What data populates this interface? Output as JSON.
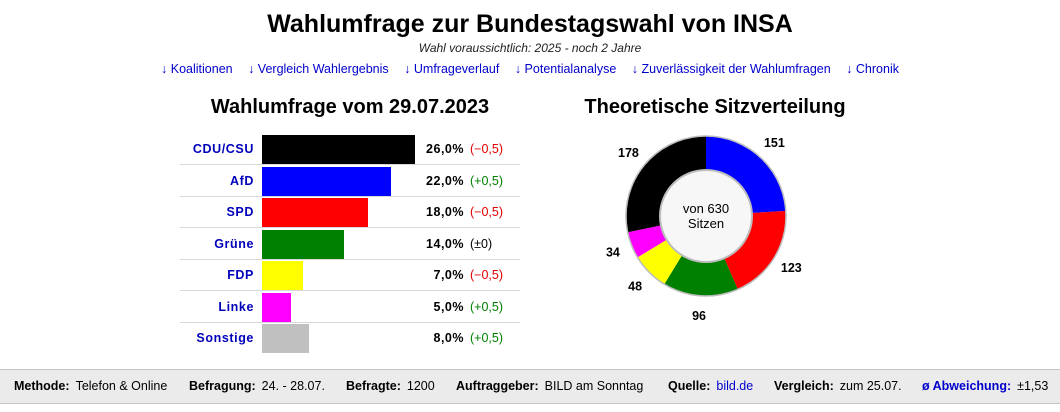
{
  "page": {
    "title": "Wahlumfrage zur Bundestagswahl von INSA",
    "subtitle": "Wahl voraussichtlich: 2025 - noch 2 Jahre"
  },
  "nav": [
    "↓ Koalitionen",
    "↓ Vergleich Wahlergebnis",
    "↓ Umfrageverlauf",
    "↓ Potentialanalyse",
    "↓ Zuverlässigkeit der Wahlumfragen",
    "↓ Chronik"
  ],
  "poll_heading": "Wahlumfrage vom 29.07.2023",
  "seat_heading": "Theoretische Sitzverteilung",
  "colors": {
    "positive_change": "#008000",
    "negative_change": "#e00000",
    "neutral_change": "#000000"
  },
  "chart_data": [
    {
      "type": "bar",
      "title": "Wahlumfrage vom 29.07.2023",
      "orientation": "horizontal",
      "categories": [
        "CDU/CSU",
        "AfD",
        "SPD",
        "Grüne",
        "FDP",
        "Linke",
        "Sonstige"
      ],
      "values": [
        26.0,
        22.0,
        18.0,
        14.0,
        7.0,
        5.0,
        8.0
      ],
      "value_labels": [
        "26,0%",
        "22,0%",
        "18,0%",
        "14,0%",
        "7,0%",
        "5,0%",
        "8,0%"
      ],
      "changes": [
        -0.5,
        0.5,
        -0.5,
        0,
        -0.5,
        0.5,
        0.5
      ],
      "change_labels": [
        "(−0,5)",
        "(+0,5)",
        "(−0,5)",
        "(±0)",
        "(−0,5)",
        "(+0,5)",
        "(+0,5)"
      ],
      "colors": [
        "#000000",
        "#0000ff",
        "#ff0000",
        "#008000",
        "#ffff00",
        "#ff00ff",
        "#c0c0c0"
      ],
      "xlim": [
        0,
        26
      ]
    },
    {
      "type": "pie",
      "title": "Theoretische Sitzverteilung",
      "style": "donut",
      "categories": [
        "AfD",
        "SPD",
        "Grüne",
        "FDP",
        "Linke",
        "CDU/CSU"
      ],
      "values": [
        151,
        123,
        96,
        48,
        34,
        178
      ],
      "colors": [
        "#0000ff",
        "#ff0000",
        "#008000",
        "#ffff00",
        "#ff00ff",
        "#000000"
      ],
      "total": 630,
      "center_label": [
        "von 630",
        "Sitzen"
      ]
    }
  ],
  "footer": {
    "method_label": "Methode:",
    "method_value": "Telefon & Online",
    "period_label": "Befragung:",
    "period_value": "24. - 28.07.",
    "sample_label": "Befragte:",
    "sample_value": "1200",
    "client_label": "Auftraggeber:",
    "client_value": "BILD am Sonntag",
    "source_label": "Quelle:",
    "source_value": "bild.de",
    "compare_label": "Vergleich:",
    "compare_value": "zum 25.07.",
    "deviation_label": "ø Abweichung:",
    "deviation_value": "±1,53"
  }
}
